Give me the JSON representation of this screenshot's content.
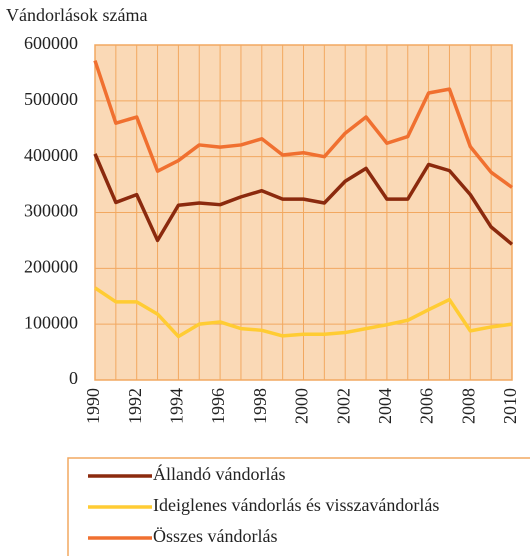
{
  "chart_data": {
    "type": "line",
    "ylabel": "Vándorlások száma",
    "x": [
      1990,
      1991,
      1992,
      1993,
      1994,
      1995,
      1996,
      1997,
      1998,
      1999,
      2000,
      2001,
      2002,
      2003,
      2004,
      2005,
      2006,
      2007,
      2008,
      2009,
      2010
    ],
    "xlim": [
      1990,
      2010
    ],
    "xticks": [
      1990,
      1992,
      1994,
      1996,
      1998,
      2000,
      2002,
      2004,
      2006,
      2008,
      2010
    ],
    "ylim": [
      0,
      600000
    ],
    "yticks": [
      0,
      100000,
      200000,
      300000,
      400000,
      500000,
      600000
    ],
    "grid": true,
    "legend": "bottom",
    "series": [
      {
        "name": "Állandó vándorlás",
        "color": "#8b2a0e",
        "values": [
          405000,
          318000,
          332000,
          250000,
          313000,
          317000,
          314000,
          328000,
          339000,
          324000,
          324000,
          317000,
          356000,
          379000,
          324000,
          324000,
          386000,
          375000,
          332000,
          274000,
          243000
        ]
      },
      {
        "name": "Ideiglenes vándorlás és visszavándorlás",
        "color": "#ffcc33",
        "values": [
          165000,
          140000,
          140000,
          118000,
          78000,
          100000,
          104000,
          92000,
          89000,
          79000,
          82000,
          82000,
          85000,
          92000,
          99000,
          107000,
          126000,
          144000,
          88000,
          95000,
          100000
        ]
      },
      {
        "name": "Összes vándorlás",
        "color": "#f07030",
        "values": [
          572000,
          460000,
          471000,
          374000,
          393000,
          421000,
          417000,
          421000,
          432000,
          403000,
          407000,
          400000,
          442000,
          471000,
          424000,
          436000,
          514000,
          521000,
          418000,
          372000,
          345000
        ]
      }
    ]
  }
}
